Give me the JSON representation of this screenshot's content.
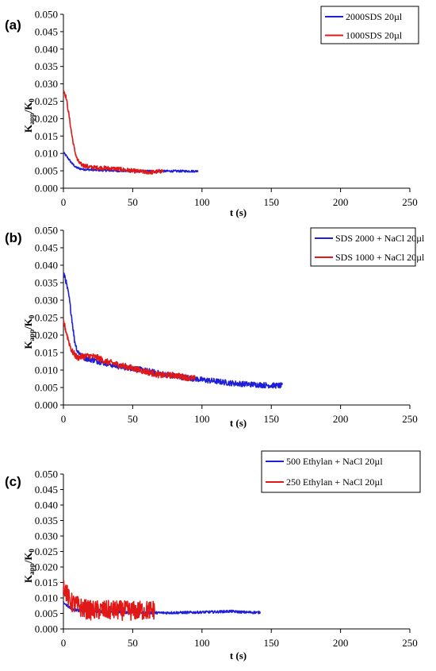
{
  "chart_data": [
    {
      "type": "line",
      "panel_label": "(a)",
      "xlabel": "t (s)",
      "ylabel": "Kapp/K0",
      "ylabel_main": "K",
      "ylabel_sub1": "app",
      "ylabel_mid": "/K",
      "ylabel_sub2": "0",
      "xlim": [
        0,
        250
      ],
      "ylim": [
        0,
        0.05
      ],
      "xticks": [
        "0",
        "50",
        "100",
        "150",
        "200",
        "250"
      ],
      "yticks": [
        "0.000",
        "0.005",
        "0.010",
        "0.015",
        "0.020",
        "0.025",
        "0.030",
        "0.035",
        "0.040",
        "0.045",
        "0.050"
      ],
      "grid": false,
      "legend_position": "top-right",
      "series": [
        {
          "name": "2000SDS 20µl",
          "color": "#1f1fd8",
          "x": [
            0,
            3,
            6,
            9,
            12,
            15,
            20,
            30,
            40,
            50,
            60,
            70,
            80,
            90,
            97
          ],
          "y": [
            0.0103,
            0.0088,
            0.0072,
            0.006,
            0.0056,
            0.0054,
            0.0053,
            0.0051,
            0.005,
            0.0049,
            0.0049,
            0.0049,
            0.0049,
            0.0049,
            0.0049
          ],
          "noise": 0.0003
        },
        {
          "name": "1000SDS 20µl",
          "color": "#e01818",
          "x": [
            0,
            2,
            4,
            6,
            8,
            10,
            12,
            15,
            20,
            30,
            40,
            50,
            60,
            65,
            72
          ],
          "y": [
            0.0285,
            0.026,
            0.021,
            0.0155,
            0.011,
            0.0082,
            0.007,
            0.0065,
            0.006,
            0.0058,
            0.0055,
            0.005,
            0.0046,
            0.0046,
            0.005
          ],
          "noise": 0.0006
        }
      ]
    },
    {
      "type": "line",
      "panel_label": "(b)",
      "xlabel": "t (s)",
      "ylabel": "Kapp/K0",
      "ylabel_main": "K",
      "ylabel_sub1": "app",
      "ylabel_mid": "/K",
      "ylabel_sub2": "0",
      "xlim": [
        0,
        250
      ],
      "ylim": [
        0,
        0.05
      ],
      "xticks": [
        "0",
        "50",
        "100",
        "150",
        "200",
        "250"
      ],
      "yticks": [
        "0.000",
        "0.005",
        "0.010",
        "0.015",
        "0.020",
        "0.025",
        "0.030",
        "0.035",
        "0.040",
        "0.045",
        "0.050"
      ],
      "grid": false,
      "legend_position": "top-right",
      "series": [
        {
          "name": "SDS 2000 + NaCl 20µl",
          "color": "#1f1fd8",
          "x": [
            0,
            1,
            2,
            4,
            6,
            8,
            10,
            15,
            20,
            30,
            40,
            50,
            60,
            70,
            80,
            90,
            100,
            110,
            120,
            130,
            140,
            150,
            158
          ],
          "y": [
            0.037,
            0.037,
            0.035,
            0.031,
            0.025,
            0.0185,
            0.0155,
            0.0135,
            0.013,
            0.012,
            0.011,
            0.0105,
            0.0098,
            0.009,
            0.0083,
            0.0078,
            0.0072,
            0.0068,
            0.0063,
            0.006,
            0.0058,
            0.0056,
            0.0055
          ],
          "noise": 0.0008
        },
        {
          "name": "SDS 1000 + NaCl 20µl",
          "color": "#e01818",
          "x": [
            0,
            2,
            4,
            6,
            8,
            10,
            15,
            20,
            25,
            30,
            40,
            50,
            60,
            70,
            80,
            90,
            95
          ],
          "y": [
            0.024,
            0.021,
            0.018,
            0.0155,
            0.0145,
            0.0135,
            0.014,
            0.014,
            0.0135,
            0.0125,
            0.0115,
            0.0105,
            0.0095,
            0.0085,
            0.0085,
            0.0078,
            0.0075
          ],
          "noise": 0.0009
        }
      ]
    },
    {
      "type": "line",
      "panel_label": "(c)",
      "xlabel": "t (s)",
      "ylabel": "Kapp/K0",
      "ylabel_main": "K",
      "ylabel_sub1": "app",
      "ylabel_mid": "/K",
      "ylabel_sub2": "0",
      "xlim": [
        0,
        250
      ],
      "ylim": [
        0,
        0.05
      ],
      "xticks": [
        "0",
        "50",
        "100",
        "150",
        "200",
        "250"
      ],
      "yticks": [
        "0.000",
        "0.005",
        "0.010",
        "0.015",
        "0.020",
        "0.025",
        "0.030",
        "0.035",
        "0.040",
        "0.045",
        "0.050"
      ],
      "grid": false,
      "legend_position": "top-right",
      "series": [
        {
          "name": "500 Ethylan + NaCl 20µl",
          "color": "#1f1fd8",
          "x": [
            0,
            2,
            4,
            6,
            10,
            15,
            20,
            30,
            50,
            70,
            90,
            110,
            120,
            130,
            142
          ],
          "y": [
            0.0085,
            0.0078,
            0.007,
            0.0065,
            0.006,
            0.0058,
            0.0057,
            0.0055,
            0.0053,
            0.0052,
            0.0053,
            0.0055,
            0.0057,
            0.0054,
            0.0053
          ],
          "noise": 0.0004
        },
        {
          "name": "250 Ethylan +  NaCl 20µl",
          "color": "#e01818",
          "x": [
            0,
            2,
            4,
            6,
            10,
            15,
            20,
            30,
            40,
            50,
            60,
            66
          ],
          "y": [
            0.0145,
            0.012,
            0.0095,
            0.0085,
            0.0075,
            0.0065,
            0.006,
            0.006,
            0.006,
            0.0058,
            0.006,
            0.0062
          ],
          "noise": 0.0032
        }
      ]
    }
  ]
}
